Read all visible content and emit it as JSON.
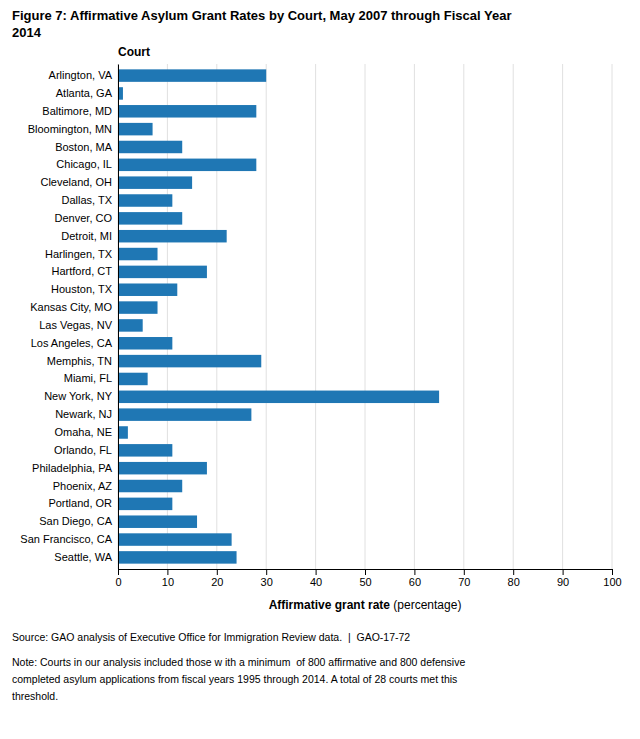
{
  "chart_data": {
    "type": "bar",
    "orientation": "horizontal",
    "title": [
      "Figure 7: Affirmative Asylum Grant Rates by Court, May 2007 through Fiscal Year",
      "2014"
    ],
    "ylabel": "Court",
    "xlabel": [
      "Affirmative grant rate",
      " (percentage)"
    ],
    "annotations": [
      "Source: GAO analysis of Executive Office for Immigration Review data.  |  GAO-17-72",
      "Note: Courts in our analysis included those w ith a minimum  of 800 affirmative and 800 defensive",
      "completed asylum applications from fiscal years 1995 through 2014. A total of 28 courts met this",
      "threshold."
    ],
    "categories": [
      "Arlington, VA",
      "Atlanta, GA",
      "Baltimore, MD",
      "Bloomington, MN",
      "Boston, MA",
      "Chicago, IL",
      "Cleveland, OH",
      "Dallas, TX",
      "Denver, CO",
      "Detroit, MI",
      "Harlingen, TX",
      "Hartford, CT",
      "Houston, TX",
      "Kansas City, MO",
      "Las Vegas, NV",
      "Los Angeles, CA",
      "Memphis, TN",
      "Miami, FL",
      "New York, NY",
      "Newark, NJ",
      "Omaha, NE",
      "Orlando, FL",
      "Philadelphia, PA",
      "Phoenix, AZ",
      "Portland, OR",
      "San Diego, CA",
      "San Francisco, CA",
      "Seattle, WA"
    ],
    "values": [
      30,
      1,
      28,
      7,
      13,
      28,
      15,
      11,
      13,
      22,
      8,
      18,
      12,
      8,
      5,
      11,
      29,
      6,
      65,
      27,
      2,
      11,
      18,
      13,
      11,
      16,
      23,
      24
    ],
    "xlim": [
      0,
      100
    ],
    "xticks": [
      0,
      10,
      20,
      30,
      40,
      50,
      60,
      70,
      80,
      90,
      100
    ],
    "grid": true
  }
}
